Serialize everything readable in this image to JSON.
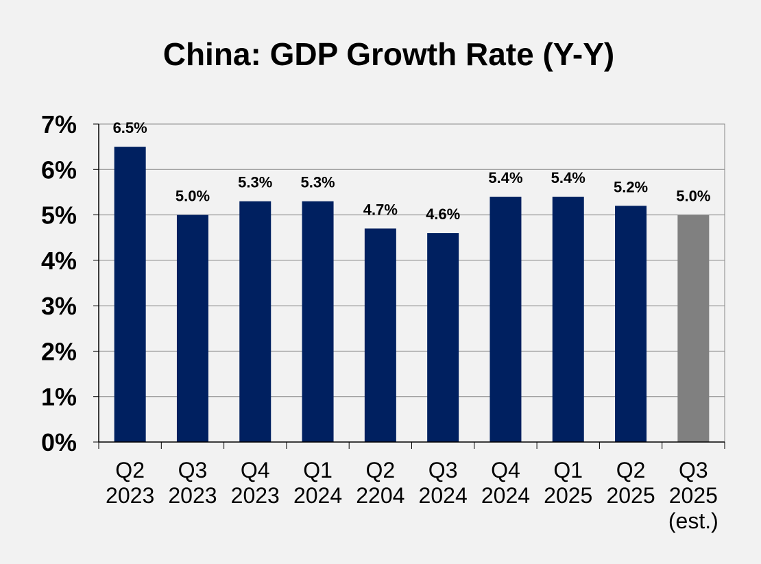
{
  "chart_data": {
    "type": "bar",
    "title": "China: GDP Growth Rate (Y-Y)",
    "xlabel": "",
    "ylabel": "",
    "ylim": [
      0,
      7
    ],
    "y_ticks": [
      "0%",
      "1%",
      "2%",
      "3%",
      "4%",
      "5%",
      "6%",
      "7%"
    ],
    "grid": true,
    "categories": [
      [
        "Q2",
        "2023"
      ],
      [
        "Q3",
        "2023"
      ],
      [
        "Q4",
        "2023"
      ],
      [
        "Q1",
        "2024"
      ],
      [
        "Q2",
        "2204"
      ],
      [
        "Q3",
        "2024"
      ],
      [
        "Q4",
        "2024"
      ],
      [
        "Q1",
        "2025"
      ],
      [
        "Q2",
        "2025"
      ],
      [
        "Q3",
        "2025",
        "(est.)"
      ]
    ],
    "values": [
      6.5,
      5.0,
      5.3,
      5.3,
      4.7,
      4.6,
      5.4,
      5.4,
      5.2,
      5.0
    ],
    "data_labels": [
      "6.5%",
      "5.0%",
      "5.3%",
      "5.3%",
      "4.7%",
      "4.6%",
      "5.4%",
      "5.4%",
      "5.2%",
      "5.0%"
    ],
    "estimated": [
      false,
      false,
      false,
      false,
      false,
      false,
      false,
      false,
      false,
      true
    ],
    "colors": {
      "actual": "#002060",
      "estimate": "#808080",
      "background": "#f2f2f2",
      "gridline": "#888888"
    }
  }
}
